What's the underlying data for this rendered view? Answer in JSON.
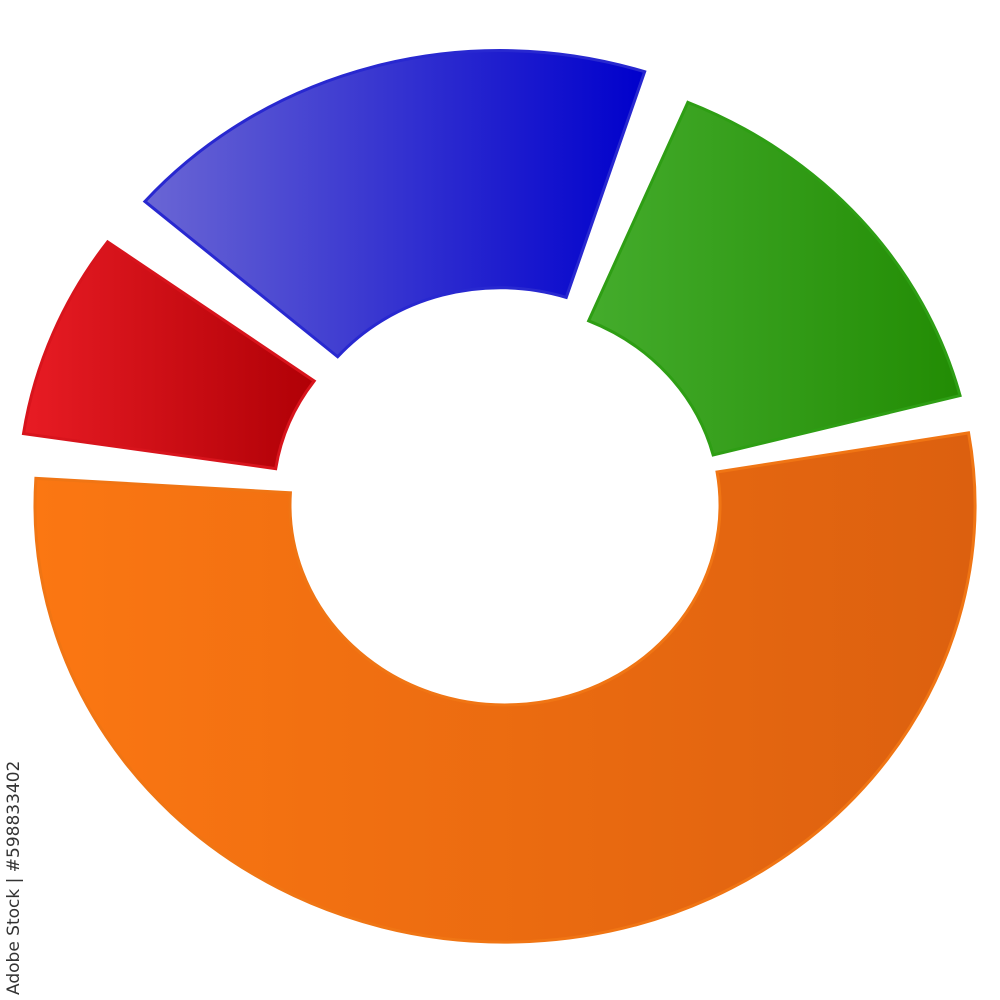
{
  "chart_data": {
    "type": "pie",
    "style": "3d-donut",
    "title": "",
    "legend": "none",
    "categories": [
      "",
      "",
      "",
      ""
    ],
    "series": [
      {
        "values": [
          55,
          9,
          20,
          16
        ],
        "colors": [
          "#f07514",
          "#d8141c",
          "#2828d0",
          "#2e9e14"
        ],
        "exploded": [
          false,
          true,
          true,
          false
        ]
      }
    ]
  },
  "watermark": {
    "text": "Adobe Stock | #598833402"
  }
}
